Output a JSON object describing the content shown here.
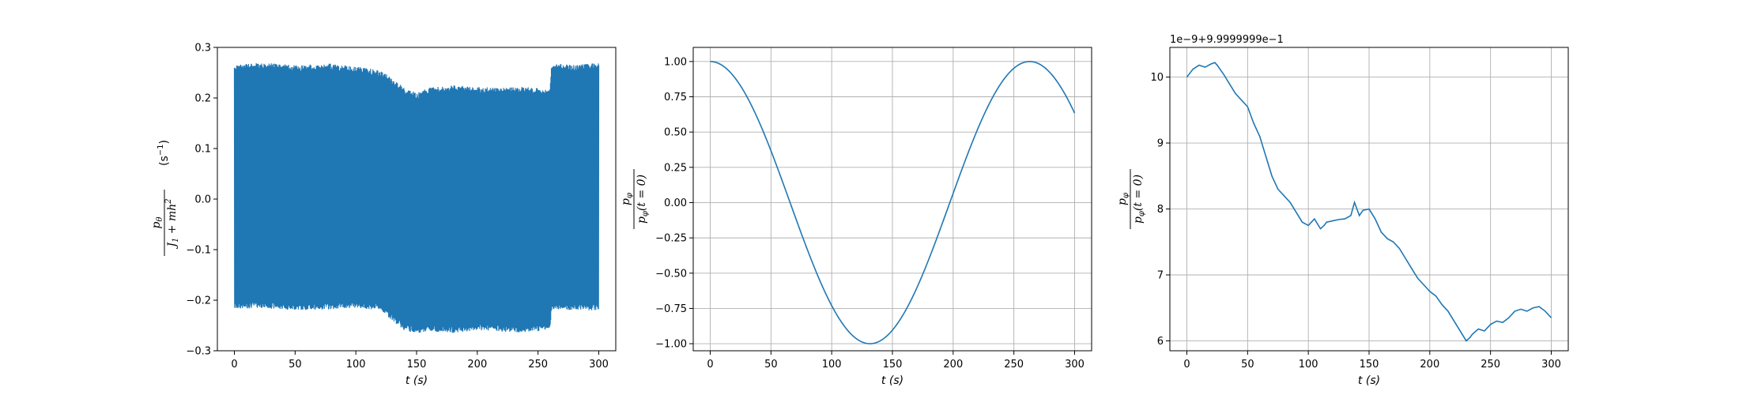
{
  "colors": {
    "series": "#1f77b4",
    "grid": "#b0b0b0",
    "axes": "#000000"
  },
  "chart_data": [
    {
      "type": "line",
      "title": "",
      "xlabel": "t (s)",
      "ylabel": "p_θ / (J_1 + m h^2)   (s^-1)",
      "ylabel_parts": {
        "num": "p",
        "num_sub": "θ",
        "den": "J",
        "den_sub": "1",
        "den_rest": " + mh",
        "den_sup": "2",
        "unit": "(s",
        "unit_sup": "−1",
        "unit_close": ")"
      },
      "xlim": [
        -14,
        314
      ],
      "ylim": [
        -0.3,
        0.3
      ],
      "grid": false,
      "x_ticks": [
        0,
        50,
        100,
        150,
        200,
        250,
        300
      ],
      "x_tick_labels": [
        "0",
        "50",
        "100",
        "150",
        "200",
        "250",
        "300"
      ],
      "y_ticks": [
        -0.3,
        -0.2,
        -0.1,
        0.0,
        0.1,
        0.2,
        0.3
      ],
      "y_tick_labels": [
        "−0.3",
        "−0.2",
        "−0.1",
        "0.0",
        "0.1",
        "0.2",
        "0.3"
      ],
      "envelope": {
        "x": [
          0,
          20,
          50,
          80,
          100,
          120,
          130,
          140,
          150,
          160,
          180,
          200,
          220,
          240,
          255,
          260,
          261,
          265,
          280,
          300
        ],
        "upper": [
          0.265,
          0.27,
          0.265,
          0.268,
          0.262,
          0.255,
          0.24,
          0.22,
          0.21,
          0.22,
          0.225,
          0.222,
          0.22,
          0.222,
          0.218,
          0.22,
          0.26,
          0.268,
          0.265,
          0.27
        ],
        "lower": [
          -0.218,
          -0.215,
          -0.22,
          -0.218,
          -0.215,
          -0.22,
          -0.24,
          -0.26,
          -0.265,
          -0.262,
          -0.265,
          -0.26,
          -0.262,
          -0.265,
          -0.26,
          -0.258,
          -0.22,
          -0.218,
          -0.22,
          -0.22
        ]
      },
      "series": [
        {
          "values_description_note": ""
        }
      ]
    },
    {
      "type": "line",
      "title": "",
      "xlabel": "t (s)",
      "ylabel": "p_φ / p_φ(t = 0)",
      "ylabel_parts": {
        "num": "p",
        "num_sub": "φ",
        "den": "p",
        "den_sub": "φ",
        "den_rest": "(t = 0)"
      },
      "xlim": [
        -14,
        314
      ],
      "ylim": [
        -1.05,
        1.1
      ],
      "grid": true,
      "x_ticks": [
        0,
        50,
        100,
        150,
        200,
        250,
        300
      ],
      "x_tick_labels": [
        "0",
        "50",
        "100",
        "150",
        "200",
        "250",
        "300"
      ],
      "y_ticks": [
        -1.0,
        -0.75,
        -0.5,
        -0.25,
        0.0,
        0.25,
        0.5,
        0.75,
        1.0
      ],
      "y_tick_labels": [
        "−1.00",
        "−0.75",
        "−0.50",
        "−0.25",
        "0.00",
        "0.25",
        "0.50",
        "0.75",
        "1.00"
      ],
      "function": {
        "kind": "cos",
        "period": 263,
        "t0": 0,
        "t1": 300
      }
    },
    {
      "type": "line",
      "title": "",
      "xlabel": "t (s)",
      "ylabel": "p_φ / p_φ(t = 0)",
      "ylabel_parts": {
        "num": "p",
        "num_sub": "φ",
        "den": "p",
        "den_sub": "φ",
        "den_rest": "(t = 0)"
      },
      "offset_text": "1e−9+9.9999999e−1",
      "xlim": [
        -14,
        314
      ],
      "ylim": [
        5.85,
        10.45
      ],
      "grid": true,
      "x_ticks": [
        0,
        50,
        100,
        150,
        200,
        250,
        300
      ],
      "x_tick_labels": [
        "0",
        "50",
        "100",
        "150",
        "200",
        "250",
        "300"
      ],
      "y_ticks": [
        6,
        7,
        8,
        9,
        10
      ],
      "y_tick_labels": [
        "6",
        "7",
        "8",
        "9",
        "10"
      ],
      "x": [
        0,
        5,
        10,
        15,
        20,
        23,
        25,
        28,
        30,
        35,
        40,
        45,
        50,
        55,
        60,
        65,
        70,
        75,
        80,
        85,
        90,
        95,
        100,
        105,
        110,
        113,
        115,
        120,
        125,
        130,
        135,
        138,
        140,
        142,
        145,
        150,
        155,
        160,
        165,
        170,
        175,
        180,
        185,
        190,
        195,
        200,
        205,
        210,
        215,
        220,
        225,
        230,
        233,
        235,
        240,
        245,
        250,
        255,
        260,
        265,
        270,
        275,
        280,
        285,
        290,
        295,
        300
      ],
      "y": [
        10.0,
        10.12,
        10.18,
        10.15,
        10.2,
        10.22,
        10.18,
        10.1,
        10.05,
        9.9,
        9.75,
        9.65,
        9.55,
        9.3,
        9.1,
        8.8,
        8.5,
        8.3,
        8.2,
        8.1,
        7.95,
        7.8,
        7.75,
        7.85,
        7.7,
        7.75,
        7.8,
        7.82,
        7.84,
        7.85,
        7.9,
        8.1,
        8.0,
        7.9,
        7.98,
        8.0,
        7.85,
        7.65,
        7.55,
        7.5,
        7.4,
        7.25,
        7.1,
        6.95,
        6.85,
        6.75,
        6.68,
        6.55,
        6.45,
        6.3,
        6.15,
        6.0,
        6.05,
        6.1,
        6.18,
        6.15,
        6.25,
        6.3,
        6.28,
        6.35,
        6.45,
        6.48,
        6.45,
        6.5,
        6.52,
        6.45,
        6.35
      ]
    }
  ]
}
